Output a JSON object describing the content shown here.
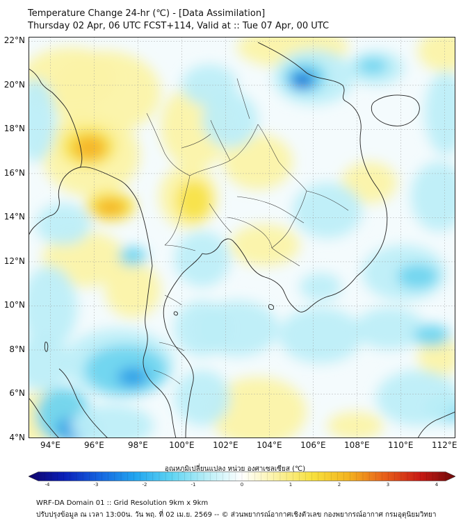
{
  "header": {
    "title_line1": "Temperature Change 24-hr (℃) - [Data Assimilation]",
    "title_line2": "Thursday 02 Apr, 06 UTC FCST+114, Valid at :: Tue 07 Apr, 00 UTC"
  },
  "map": {
    "lat_labels": [
      "22°N",
      "20°N",
      "18°N",
      "16°N",
      "14°N",
      "12°N",
      "10°N",
      "8°N",
      "6°N",
      "4°N"
    ],
    "lon_labels": [
      "94°E",
      "96°E",
      "98°E",
      "100°E",
      "102°E",
      "104°E",
      "106°E",
      "108°E",
      "110°E",
      "112°E"
    ],
    "colors": {
      "neutral": "#f4fbfd",
      "light_blue": "#bdeef8",
      "cyan": "#6fd5f0",
      "blue": "#2a9ee6",
      "deep_blue": "#1250c8",
      "light_yellow": "#fbf3a8",
      "yellow": "#f8e34a",
      "orange": "#f4b427",
      "coast": "#222222"
    }
  },
  "colorbar": {
    "title": "อุณหภูมิเปลี่ยนแปลง หน่วย องศาเซลเซียส (℃)",
    "tick_labels": [
      "-4",
      "-3",
      "-2",
      "-1",
      "0",
      "1",
      "2",
      "3",
      "4"
    ],
    "stops": [
      "#10046a",
      "#0a1fb8",
      "#1565e0",
      "#22a5ef",
      "#5dd3f2",
      "#b8eef7",
      "#ffffff",
      "#fbf1a0",
      "#f7e03d",
      "#f3b320",
      "#e8601a",
      "#c81a14",
      "#6e0a0a"
    ]
  },
  "footer": {
    "line1": "WRF-DA Domain 01 :: Grid Resolution 9km x 9km",
    "line2": "ปรับปรุงข้อมูล ณ เวลา 13:00น. วัน พฤ. ที่ 02 เม.ย. 2569 -- © ส่วนพยากรณ์อากาศเชิงตัวเลข กองพยากรณ์อากาศ กรมอุตุนิยมวิทยา"
  }
}
